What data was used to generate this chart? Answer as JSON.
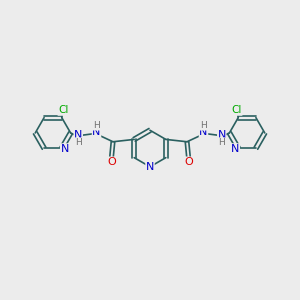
{
  "background_color": "#ececec",
  "figsize": [
    3.0,
    3.0
  ],
  "dpi": 100,
  "colors": {
    "N": "#0000cc",
    "O": "#dd0000",
    "Cl": "#00aa00",
    "C_bond": "#2a6060",
    "H": "#707070"
  },
  "bond_lw": 1.2,
  "ring_r": 0.62,
  "side_ring_r": 0.6
}
